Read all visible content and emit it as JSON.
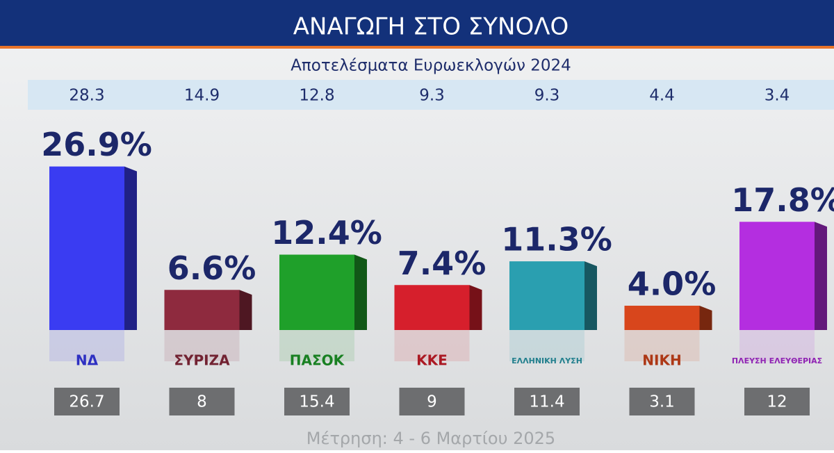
{
  "chart_data": {
    "type": "bar",
    "title": "ΑΝΑΓΩΓΗ ΣΤΟ ΣΥΝΟΛΟ",
    "subtitle": "Αποτελέσματα Ευρωεκλογών 2024",
    "footer": "Μέτρηση: 4 - 6 Μαρτίου 2025",
    "categories": [
      "ΝΔ",
      "ΣΥΡΙΖΑ",
      "ΠΑΣΟΚ",
      "ΚΚΕ",
      "ΕΛΛΗΝΙΚΗ ΛΥΣΗ",
      "ΝΙΚΗ",
      "ΠΛΕΥΣΗ ΕΛΕΥΘΕΡΙΑΣ"
    ],
    "values": [
      26.9,
      6.6,
      12.4,
      7.4,
      11.3,
      4.0,
      17.8
    ],
    "value_labels": [
      "26.9%",
      "6.6%",
      "12.4%",
      "7.4%",
      "11.3%",
      "4.0%",
      "17.8%"
    ],
    "colors": [
      "#3a3cf2",
      "#8e2a3e",
      "#1fa02a",
      "#d61f2c",
      "#2a9fb0",
      "#d8461c",
      "#b42ee0"
    ],
    "election_2024": [
      28.3,
      14.9,
      12.8,
      9.3,
      9.3,
      4.4,
      3.4
    ],
    "previous_values": [
      26.7,
      8,
      15.4,
      9,
      11.4,
      3.1,
      12
    ]
  }
}
